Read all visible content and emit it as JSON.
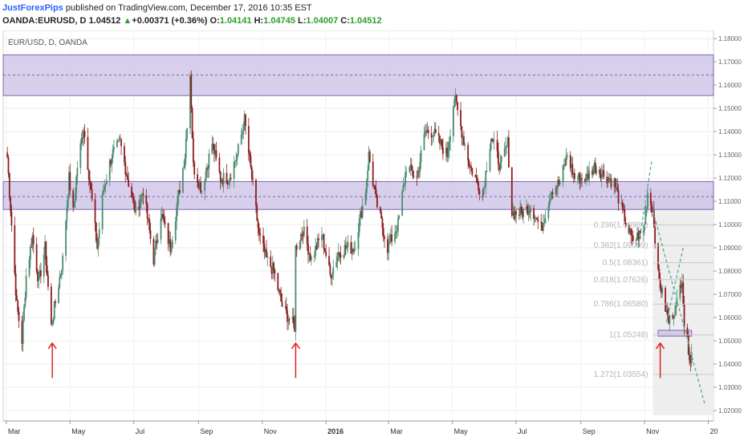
{
  "header": {
    "author": "JustForexPips",
    "published_text": " published on TradingView.com, December 17, 2016 10:35 EST",
    "symbol_line": "OANDA:EURUSD, D",
    "last": "1.04512",
    "change": "+0.00371 (+0.36%)",
    "o_label": "O:",
    "o": "1.04141",
    "h_label": "H:",
    "h": "1.04745",
    "l_label": "L:",
    "l": "1.04007",
    "c_label": "C:",
    "c": "1.04512"
  },
  "colors": {
    "up": "#4a8c6f",
    "down": "#8b1d1d",
    "zone_fill": "#cbbfe6",
    "zone_line": "#7b68b0",
    "arrow": "#e02020",
    "trendline": "#5aaa96",
    "fib_shade": "#eeeeee"
  },
  "chart_data": {
    "type": "candlestick",
    "symbol_label": "EUR/USD, D, OANDA",
    "ylim": [
      1.0155,
      1.1835
    ],
    "y_ticks": [
      "1.02000",
      "1.03000",
      "1.04000",
      "1.05000",
      "1.06000",
      "1.07000",
      "1.08000",
      "1.09000",
      "1.10000",
      "1.11000",
      "1.12000",
      "1.13000",
      "1.14000",
      "1.15000",
      "1.16000",
      "1.17000",
      "1.18000"
    ],
    "x_ticks": [
      "Mar",
      "May",
      "Jul",
      "Sep",
      "Nov",
      "2016",
      "Mar",
      "May",
      "Jul",
      "Sep",
      "Nov",
      "20"
    ],
    "last_close": 1.04512,
    "path": [
      [
        "2015-03-02",
        1.129
      ],
      [
        "2015-03-06",
        1.1
      ],
      [
        "2015-03-11",
        1.065
      ],
      [
        "2015-03-16",
        1.05
      ],
      [
        "2015-03-20",
        1.078
      ],
      [
        "2015-03-26",
        1.095
      ],
      [
        "2015-04-01",
        1.075
      ],
      [
        "2015-04-07",
        1.09
      ],
      [
        "2015-04-13",
        1.056
      ],
      [
        "2015-04-24",
        1.085
      ],
      [
        "2015-04-30",
        1.12
      ],
      [
        "2015-05-04",
        1.105
      ],
      [
        "2015-05-08",
        1.125
      ],
      [
        "2015-05-14",
        1.142
      ],
      [
        "2015-05-22",
        1.11
      ],
      [
        "2015-05-27",
        1.09
      ],
      [
        "2015-06-02",
        1.115
      ],
      [
        "2015-06-10",
        1.13
      ],
      [
        "2015-06-18",
        1.135
      ],
      [
        "2015-06-26",
        1.118
      ],
      [
        "2015-07-03",
        1.105
      ],
      [
        "2015-07-10",
        1.115
      ],
      [
        "2015-07-20",
        1.085
      ],
      [
        "2015-07-27",
        1.105
      ],
      [
        "2015-08-05",
        1.09
      ],
      [
        "2015-08-12",
        1.11
      ],
      [
        "2015-08-19",
        1.13
      ],
      [
        "2015-08-24",
        1.165
      ],
      [
        "2015-08-27",
        1.125
      ],
      [
        "2015-09-04",
        1.115
      ],
      [
        "2015-09-14",
        1.135
      ],
      [
        "2015-09-22",
        1.12
      ],
      [
        "2015-09-30",
        1.12
      ],
      [
        "2015-10-08",
        1.13
      ],
      [
        "2015-10-15",
        1.145
      ],
      [
        "2015-10-22",
        1.12
      ],
      [
        "2015-10-29",
        1.095
      ],
      [
        "2015-11-05",
        1.085
      ],
      [
        "2015-11-12",
        1.08
      ],
      [
        "2015-11-20",
        1.065
      ],
      [
        "2015-11-26",
        1.06
      ],
      [
        "2015-12-02",
        1.056
      ],
      [
        "2015-12-03",
        1.09
      ],
      [
        "2015-12-10",
        1.098
      ],
      [
        "2015-12-18",
        1.085
      ],
      [
        "2015-12-28",
        1.096
      ],
      [
        "2016-01-05",
        1.078
      ],
      [
        "2016-01-13",
        1.088
      ],
      [
        "2016-01-20",
        1.09
      ],
      [
        "2016-01-28",
        1.09
      ],
      [
        "2016-02-08",
        1.115
      ],
      [
        "2016-02-11",
        1.13
      ],
      [
        "2016-02-18",
        1.11
      ],
      [
        "2016-02-29",
        1.09
      ],
      [
        "2016-03-10",
        1.1
      ],
      [
        "2016-03-18",
        1.125
      ],
      [
        "2016-03-28",
        1.12
      ],
      [
        "2016-04-05",
        1.14
      ],
      [
        "2016-04-12",
        1.14
      ],
      [
        "2016-04-19",
        1.135
      ],
      [
        "2016-04-26",
        1.13
      ],
      [
        "2016-05-03",
        1.155
      ],
      [
        "2016-05-10",
        1.14
      ],
      [
        "2016-05-18",
        1.125
      ],
      [
        "2016-05-30",
        1.113
      ],
      [
        "2016-06-07",
        1.138
      ],
      [
        "2016-06-16",
        1.125
      ],
      [
        "2016-06-23",
        1.135
      ],
      [
        "2016-06-27",
        1.105
      ],
      [
        "2016-07-06",
        1.105
      ],
      [
        "2016-07-15",
        1.108
      ],
      [
        "2016-07-25",
        1.098
      ],
      [
        "2016-08-04",
        1.115
      ],
      [
        "2016-08-12",
        1.118
      ],
      [
        "2016-08-19",
        1.13
      ],
      [
        "2016-08-26",
        1.12
      ],
      [
        "2016-09-06",
        1.12
      ],
      [
        "2016-09-14",
        1.125
      ],
      [
        "2016-09-22",
        1.122
      ],
      [
        "2016-10-03",
        1.118
      ],
      [
        "2016-10-11",
        1.105
      ],
      [
        "2016-10-20",
        1.093
      ],
      [
        "2016-10-31",
        1.097
      ],
      [
        "2016-11-04",
        1.114
      ],
      [
        "2016-11-09",
        1.106
      ],
      [
        "2016-11-14",
        1.078
      ],
      [
        "2016-11-24",
        1.058
      ],
      [
        "2016-12-02",
        1.066
      ],
      [
        "2016-12-07",
        1.078
      ],
      [
        "2016-12-09",
        1.057
      ],
      [
        "2016-12-15",
        1.042
      ],
      [
        "2016-12-16",
        1.0451
      ]
    ],
    "zones": [
      {
        "top": 1.173,
        "bottom": 1.1555,
        "mid": 1.1643
      },
      {
        "top": 1.1185,
        "bottom": 1.1065,
        "mid": 1.112
      },
      {
        "top": 1.0545,
        "bottom": 1.052,
        "mid": null
      }
    ],
    "fib_levels": [
      {
        "label": "0.236(1.09980)",
        "value": 1.0998
      },
      {
        "label": "0.382(1.09099)",
        "value": 1.091
      },
      {
        "label": "0.5(1.08361)",
        "value": 1.0836
      },
      {
        "label": "0.618(1.07626)",
        "value": 1.0763
      },
      {
        "label": "0.786(1.06580)",
        "value": 1.0658
      },
      {
        "label": "1(1.05248)",
        "value": 1.0525
      },
      {
        "label": "1.272(1.03554)",
        "value": 1.0355
      }
    ],
    "fib_range": {
      "start": "2016-11-09",
      "end": "2016-12-30",
      "top": 1.115,
      "bottom": 1.018
    },
    "arrows": [
      "2015-04-14",
      "2015-12-03",
      "2016-11-16"
    ],
    "trendlines": [
      [
        [
          "2016-10-26",
          1.09
        ],
        [
          "2016-11-08",
          1.128
        ]
      ],
      [
        [
          "2016-11-22",
          1.058
        ],
        [
          "2016-12-08",
          1.09
        ]
      ],
      [
        [
          "2016-11-09",
          1.106
        ],
        [
          "2016-12-29",
          1.022
        ]
      ]
    ]
  }
}
